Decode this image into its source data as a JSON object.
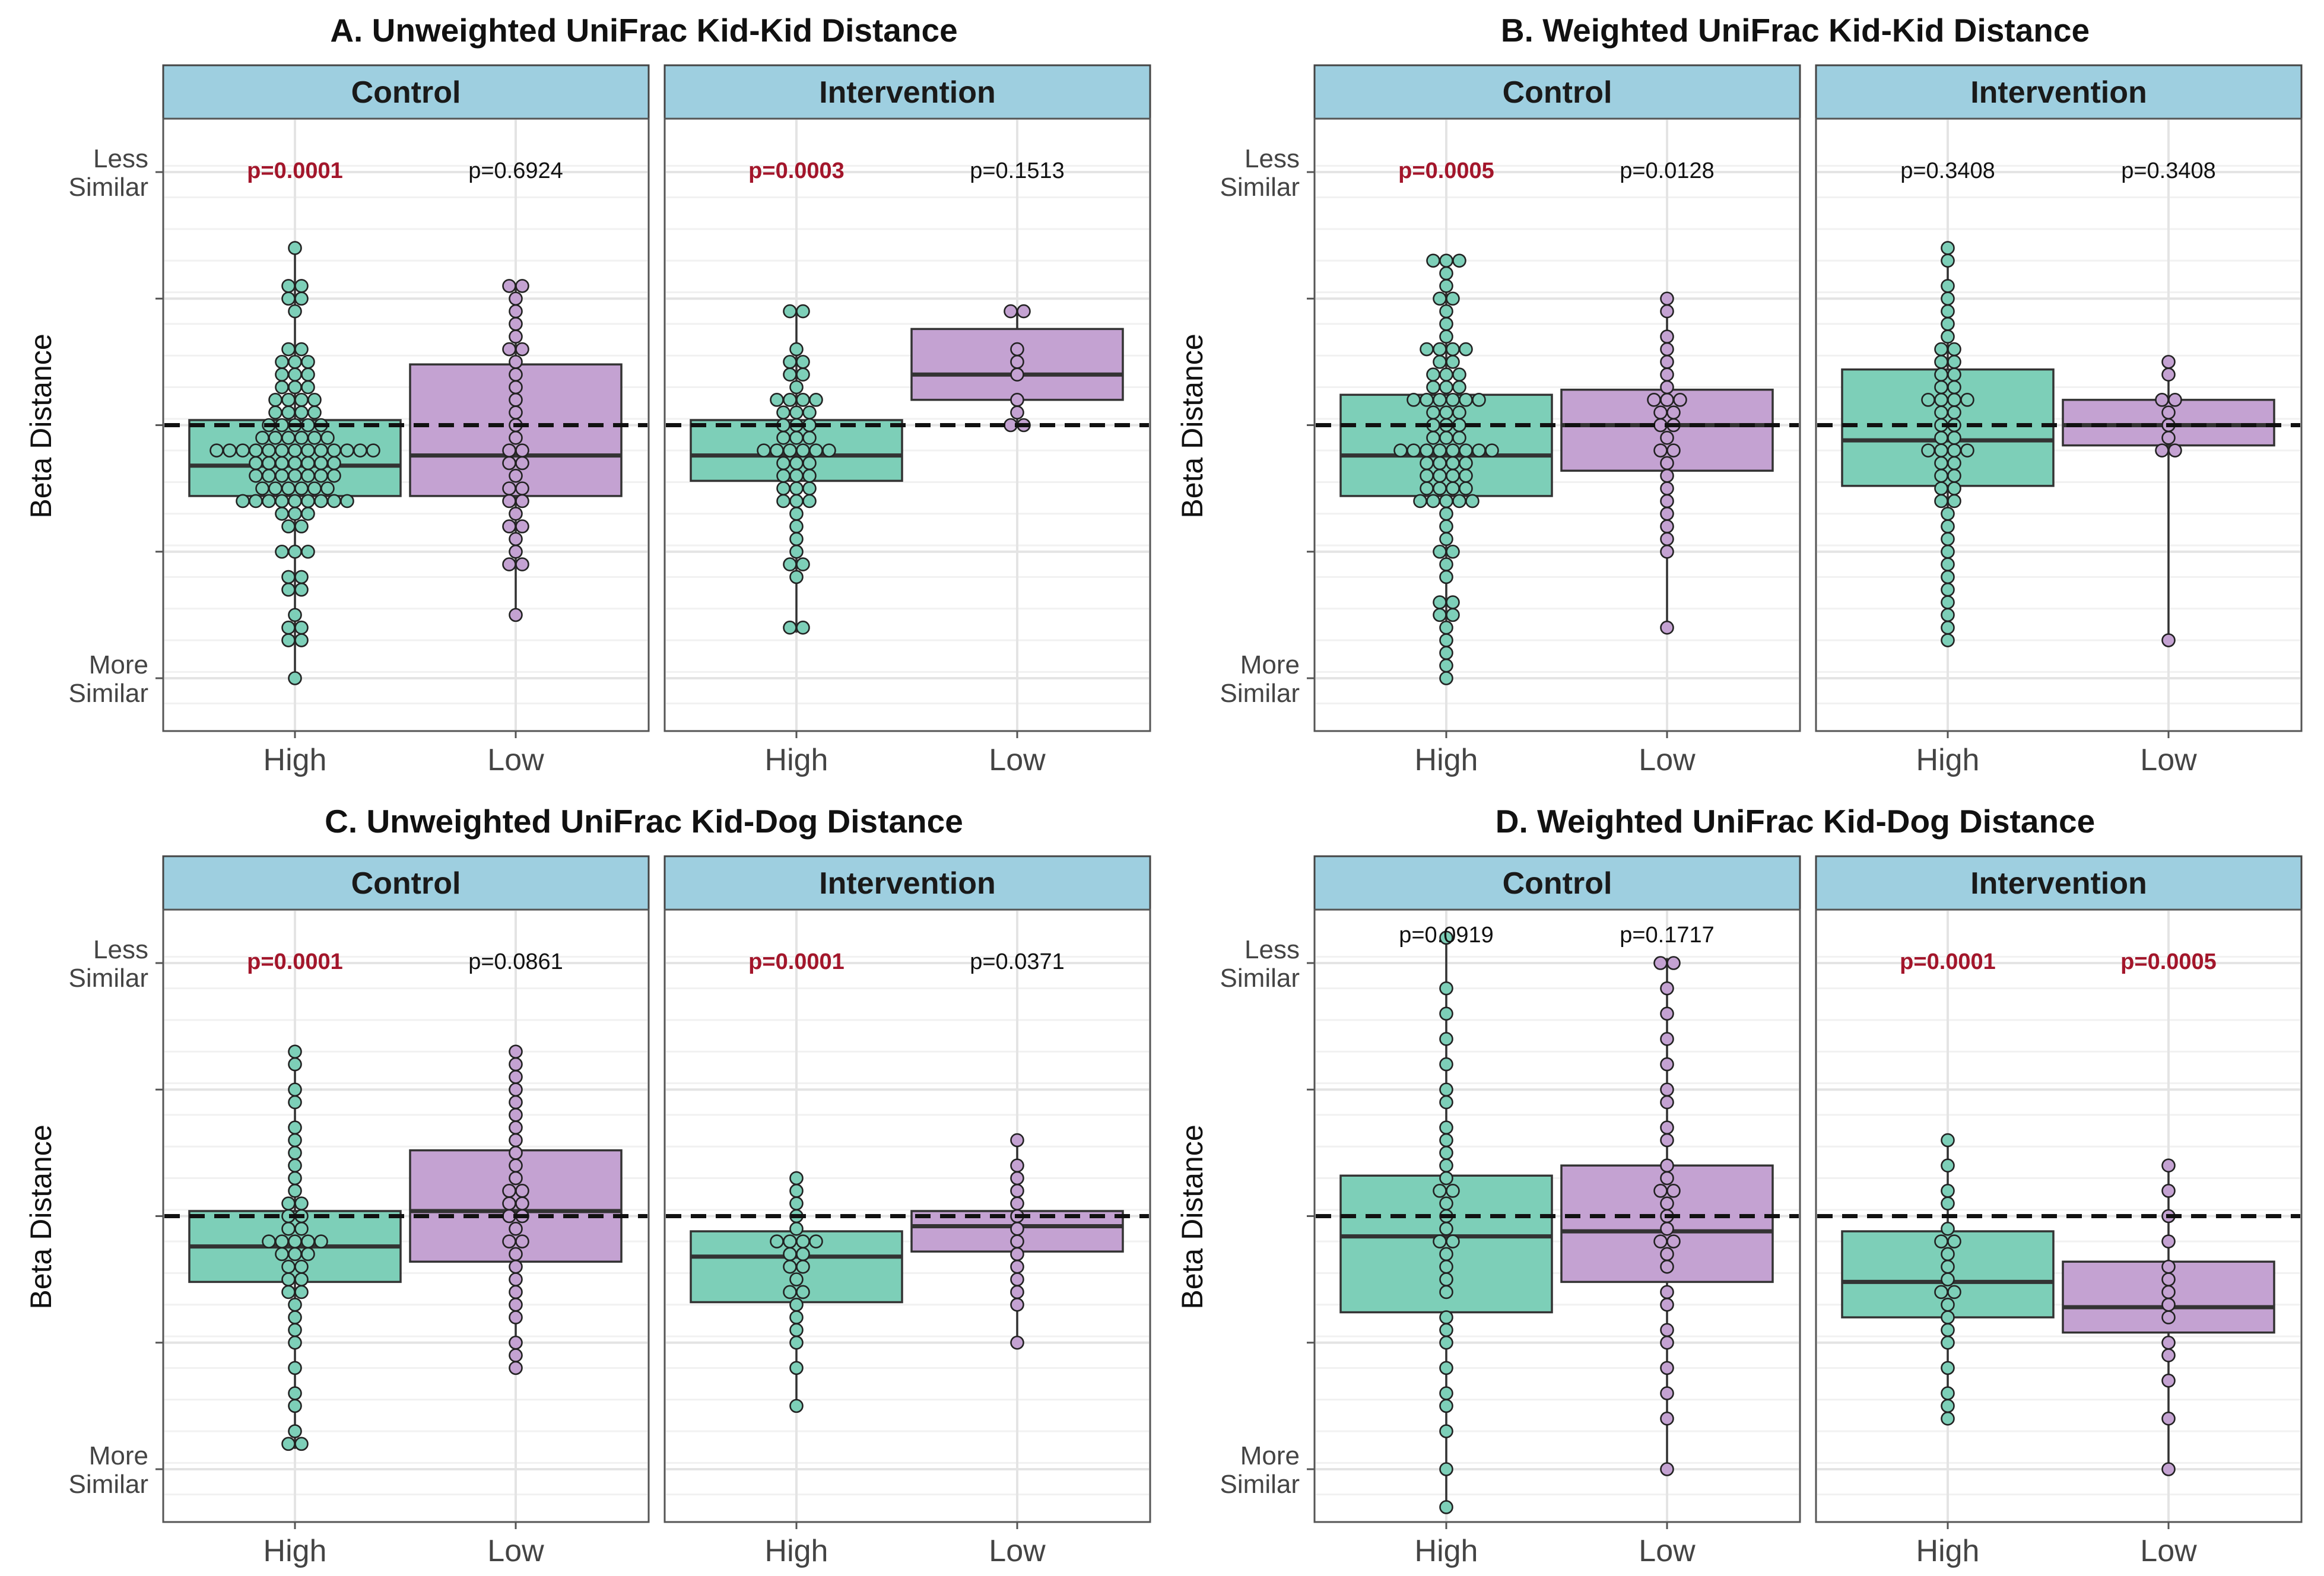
{
  "figure": {
    "y_axis_label": "Beta Distance",
    "y_tick_top_line1": "Less",
    "y_tick_top_line2": "Similar",
    "y_tick_bottom_line1": "More",
    "y_tick_bottom_line2": "Similar",
    "x_categories": [
      "High",
      "Low"
    ],
    "facets": [
      "Control",
      "Intervention"
    ],
    "colors": {
      "High": "#7dcfb8",
      "Low": "#c4a2d2",
      "strip": "#9ecfe0",
      "significant": "#a3162b"
    }
  },
  "chart_data": [
    {
      "type": "box",
      "title": "A. Unweighted UniFrac Kid-Kid Distance",
      "ylabel": "Beta Distance",
      "ylim": [
        0,
        1
      ],
      "reference_line": 0.5,
      "facets": [
        {
          "name": "Control",
          "groups": [
            {
              "category": "High",
              "p_value": "p=0.0001",
              "significant": true,
              "stats": {
                "min": 0.0,
                "q1": 0.36,
                "median": 0.42,
                "q3": 0.51,
                "max": 0.85
              },
              "points": [
                0.0,
                0.07,
                0.07,
                0.1,
                0.1,
                0.12,
                0.17,
                0.17,
                0.2,
                0.2,
                0.25,
                0.25,
                0.25,
                0.3,
                0.3,
                0.32,
                0.32,
                0.32,
                0.34,
                0.34,
                0.34,
                0.34,
                0.36,
                0.36,
                0.36,
                0.36,
                0.36,
                0.38,
                0.38,
                0.38,
                0.38,
                0.38,
                0.38,
                0.4,
                0.4,
                0.4,
                0.4,
                0.4,
                0.4,
                0.4,
                0.42,
                0.42,
                0.42,
                0.42,
                0.42,
                0.42,
                0.42,
                0.44,
                0.44,
                0.44,
                0.44,
                0.44,
                0.44,
                0.44,
                0.46,
                0.46,
                0.46,
                0.46,
                0.46,
                0.46,
                0.48,
                0.48,
                0.48,
                0.48,
                0.48,
                0.48,
                0.5,
                0.5,
                0.5,
                0.5,
                0.5,
                0.52,
                0.52,
                0.52,
                0.52,
                0.55,
                0.55,
                0.55,
                0.55,
                0.58,
                0.58,
                0.58,
                0.6,
                0.6,
                0.6,
                0.63,
                0.63,
                0.63,
                0.66,
                0.66,
                0.72,
                0.76,
                0.76,
                0.78,
                0.78,
                0.85
              ]
            },
            {
              "category": "Low",
              "p_value": "p=0.6924",
              "significant": false,
              "stats": {
                "min": 0.13,
                "q1": 0.36,
                "median": 0.44,
                "q3": 0.62,
                "max": 0.78
              },
              "points": [
                0.13,
                0.22,
                0.22,
                0.26,
                0.28,
                0.3,
                0.3,
                0.33,
                0.35,
                0.36,
                0.38,
                0.38,
                0.4,
                0.42,
                0.42,
                0.44,
                0.46,
                0.48,
                0.5,
                0.52,
                0.55,
                0.58,
                0.6,
                0.62,
                0.64,
                0.66,
                0.68,
                0.7,
                0.72,
                0.74,
                0.78,
                0.78
              ]
            }
          ]
        },
        {
          "name": "Intervention",
          "groups": [
            {
              "category": "High",
              "p_value": "p=0.0003",
              "significant": true,
              "stats": {
                "min": 0.09,
                "q1": 0.39,
                "median": 0.44,
                "q3": 0.51,
                "max": 0.72
              },
              "points": [
                0.09,
                0.09,
                0.2,
                0.23,
                0.23,
                0.26,
                0.28,
                0.3,
                0.32,
                0.34,
                0.36,
                0.36,
                0.38,
                0.38,
                0.38,
                0.4,
                0.4,
                0.4,
                0.42,
                0.42,
                0.42,
                0.44,
                0.44,
                0.44,
                0.46,
                0.46,
                0.46,
                0.48,
                0.48,
                0.48,
                0.5,
                0.5,
                0.5,
                0.52,
                0.52,
                0.52,
                0.54,
                0.54,
                0.56,
                0.56,
                0.58,
                0.6,
                0.6,
                0.62,
                0.62,
                0.66,
                0.72,
                0.72
              ]
            },
            {
              "category": "Low",
              "p_value": "p=0.1513",
              "significant": false,
              "stats": {
                "min": 0.5,
                "q1": 0.55,
                "median": 0.6,
                "q3": 0.69,
                "max": 0.73
              },
              "points": [
                0.5,
                0.5,
                0.53,
                0.56,
                0.59,
                0.63,
                0.66,
                0.73,
                0.73
              ]
            }
          ]
        }
      ]
    },
    {
      "type": "box",
      "title": "B. Weighted UniFrac Kid-Kid Distance",
      "ylabel": "Beta Distance",
      "ylim": [
        0,
        1
      ],
      "reference_line": 0.5,
      "facets": [
        {
          "name": "Control",
          "groups": [
            {
              "category": "High",
              "p_value": "p=0.0005",
              "significant": true,
              "stats": {
                "min": 0.0,
                "q1": 0.36,
                "median": 0.44,
                "q3": 0.56,
                "max": 0.82
              },
              "points": [
                0.0,
                0.02,
                0.05,
                0.08,
                0.1,
                0.12,
                0.12,
                0.14,
                0.16,
                0.2,
                0.22,
                0.24,
                0.26,
                0.28,
                0.3,
                0.32,
                0.34,
                0.34,
                0.36,
                0.36,
                0.36,
                0.38,
                0.38,
                0.38,
                0.38,
                0.4,
                0.4,
                0.4,
                0.4,
                0.42,
                0.42,
                0.42,
                0.42,
                0.44,
                0.44,
                0.44,
                0.44,
                0.46,
                0.46,
                0.46,
                0.46,
                0.48,
                0.48,
                0.48,
                0.5,
                0.5,
                0.5,
                0.52,
                0.52,
                0.52,
                0.54,
                0.54,
                0.54,
                0.56,
                0.56,
                0.56,
                0.58,
                0.58,
                0.58,
                0.6,
                0.6,
                0.6,
                0.62,
                0.62,
                0.64,
                0.64,
                0.66,
                0.66,
                0.68,
                0.7,
                0.72,
                0.74,
                0.76,
                0.78,
                0.8,
                0.82,
                0.82,
                0.82
              ]
            },
            {
              "category": "Low",
              "p_value": "p=0.0128",
              "significant": false,
              "stats": {
                "min": 0.1,
                "q1": 0.41,
                "median": 0.5,
                "q3": 0.57,
                "max": 0.75
              },
              "points": [
                0.1,
                0.24,
                0.27,
                0.3,
                0.32,
                0.35,
                0.38,
                0.4,
                0.42,
                0.44,
                0.46,
                0.48,
                0.5,
                0.5,
                0.52,
                0.52,
                0.54,
                0.55,
                0.56,
                0.57,
                0.6,
                0.62,
                0.65,
                0.68,
                0.72,
                0.75
              ]
            }
          ]
        },
        {
          "name": "Intervention",
          "groups": [
            {
              "category": "High",
              "p_value": "p=0.3408",
              "significant": false,
              "stats": {
                "min": 0.07,
                "q1": 0.38,
                "median": 0.47,
                "q3": 0.61,
                "max": 0.86
              },
              "points": [
                0.07,
                0.1,
                0.13,
                0.15,
                0.18,
                0.2,
                0.22,
                0.25,
                0.28,
                0.3,
                0.32,
                0.34,
                0.36,
                0.38,
                0.38,
                0.4,
                0.4,
                0.42,
                0.42,
                0.44,
                0.44,
                0.46,
                0.46,
                0.48,
                0.48,
                0.5,
                0.5,
                0.52,
                0.52,
                0.54,
                0.54,
                0.56,
                0.56,
                0.58,
                0.58,
                0.6,
                0.6,
                0.62,
                0.62,
                0.64,
                0.66,
                0.68,
                0.7,
                0.72,
                0.74,
                0.78,
                0.82,
                0.86
              ]
            },
            {
              "category": "Low",
              "p_value": "p=0.3408",
              "significant": false,
              "stats": {
                "min": 0.08,
                "q1": 0.46,
                "median": 0.5,
                "q3": 0.55,
                "max": 0.63
              },
              "points": [
                0.08,
                0.46,
                0.46,
                0.48,
                0.5,
                0.52,
                0.54,
                0.56,
                0.59,
                0.63
              ]
            }
          ]
        }
      ]
    },
    {
      "type": "box",
      "title": "C. Unweighted UniFrac Kid-Dog Distance",
      "ylabel": "Beta Distance",
      "ylim": [
        0,
        1
      ],
      "reference_line": 0.5,
      "facets": [
        {
          "name": "Control",
          "groups": [
            {
              "category": "High",
              "p_value": "p=0.0001",
              "significant": true,
              "stats": {
                "min": 0.04,
                "q1": 0.37,
                "median": 0.44,
                "q3": 0.51,
                "max": 0.83
              },
              "points": [
                0.04,
                0.05,
                0.08,
                0.12,
                0.16,
                0.2,
                0.24,
                0.28,
                0.3,
                0.32,
                0.34,
                0.36,
                0.38,
                0.38,
                0.4,
                0.4,
                0.42,
                0.42,
                0.42,
                0.44,
                0.44,
                0.44,
                0.46,
                0.46,
                0.48,
                0.48,
                0.5,
                0.5,
                0.52,
                0.52,
                0.55,
                0.58,
                0.6,
                0.62,
                0.65,
                0.68,
                0.72,
                0.76,
                0.8,
                0.83
              ]
            },
            {
              "category": "Low",
              "p_value": "p=0.0861",
              "significant": false,
              "stats": {
                "min": 0.2,
                "q1": 0.41,
                "median": 0.51,
                "q3": 0.63,
                "max": 0.83
              },
              "points": [
                0.2,
                0.23,
                0.26,
                0.3,
                0.33,
                0.36,
                0.38,
                0.4,
                0.42,
                0.44,
                0.46,
                0.48,
                0.5,
                0.5,
                0.52,
                0.52,
                0.54,
                0.56,
                0.58,
                0.6,
                0.62,
                0.64,
                0.67,
                0.7,
                0.72,
                0.75,
                0.78,
                0.8,
                0.83
              ]
            }
          ]
        },
        {
          "name": "Intervention",
          "groups": [
            {
              "category": "High",
              "p_value": "p=0.0001",
              "significant": true,
              "stats": {
                "min": 0.12,
                "q1": 0.33,
                "median": 0.42,
                "q3": 0.47,
                "max": 0.58
              },
              "points": [
                0.12,
                0.2,
                0.24,
                0.28,
                0.3,
                0.32,
                0.34,
                0.36,
                0.38,
                0.4,
                0.4,
                0.42,
                0.42,
                0.44,
                0.44,
                0.46,
                0.46,
                0.48,
                0.5,
                0.52,
                0.55,
                0.58
              ]
            },
            {
              "category": "Low",
              "p_value": "p=0.0371",
              "significant": false,
              "stats": {
                "min": 0.24,
                "q1": 0.43,
                "median": 0.48,
                "q3": 0.51,
                "max": 0.64
              },
              "points": [
                0.24,
                0.32,
                0.36,
                0.38,
                0.4,
                0.43,
                0.45,
                0.48,
                0.5,
                0.52,
                0.55,
                0.58,
                0.61,
                0.64
              ]
            }
          ]
        }
      ]
    },
    {
      "type": "box",
      "title": "D. Weighted UniFrac Kid-Dog Distance",
      "ylabel": "Beta Distance",
      "ylim": [
        0,
        1
      ],
      "reference_line": 0.5,
      "facets": [
        {
          "name": "Control",
          "groups": [
            {
              "category": "High",
              "p_value": "p=0.0919",
              "significant": false,
              "stats": {
                "min": -0.07,
                "q1": 0.31,
                "median": 0.46,
                "q3": 0.58,
                "max": 1.05
              },
              "points": [
                -0.07,
                0.0,
                0.08,
                0.12,
                0.16,
                0.2,
                0.24,
                0.28,
                0.3,
                0.34,
                0.38,
                0.4,
                0.42,
                0.44,
                0.46,
                0.48,
                0.5,
                0.52,
                0.54,
                0.56,
                0.58,
                0.6,
                0.62,
                0.64,
                0.68,
                0.72,
                0.76,
                0.8,
                0.85,
                0.9,
                0.96,
                1.05
              ]
            },
            {
              "category": "Low",
              "p_value": "p=0.1717",
              "significant": false,
              "stats": {
                "min": 0.0,
                "q1": 0.37,
                "median": 0.47,
                "q3": 0.6,
                "max": 1.01
              },
              "points": [
                0.0,
                0.1,
                0.16,
                0.2,
                0.24,
                0.28,
                0.32,
                0.36,
                0.4,
                0.42,
                0.44,
                0.46,
                0.48,
                0.5,
                0.52,
                0.54,
                0.56,
                0.58,
                0.6,
                0.64,
                0.68,
                0.72,
                0.76,
                0.8,
                0.85,
                0.9,
                0.96,
                1.0,
                1.01
              ]
            }
          ]
        },
        {
          "name": "Intervention",
          "groups": [
            {
              "category": "High",
              "p_value": "p=0.0001",
              "significant": true,
              "stats": {
                "min": 0.11,
                "q1": 0.3,
                "median": 0.37,
                "q3": 0.47,
                "max": 0.64
              },
              "points": [
                0.11,
                0.13,
                0.16,
                0.2,
                0.24,
                0.28,
                0.3,
                0.32,
                0.34,
                0.36,
                0.38,
                0.4,
                0.42,
                0.44,
                0.46,
                0.48,
                0.52,
                0.56,
                0.6,
                0.64
              ]
            },
            {
              "category": "Low",
              "p_value": "p=0.0005",
              "significant": true,
              "stats": {
                "min": 0.01,
                "q1": 0.27,
                "median": 0.32,
                "q3": 0.41,
                "max": 0.59
              },
              "points": [
                0.01,
                0.11,
                0.17,
                0.22,
                0.26,
                0.29,
                0.32,
                0.35,
                0.38,
                0.41,
                0.45,
                0.5,
                0.55,
                0.59
              ]
            }
          ]
        }
      ]
    }
  ]
}
